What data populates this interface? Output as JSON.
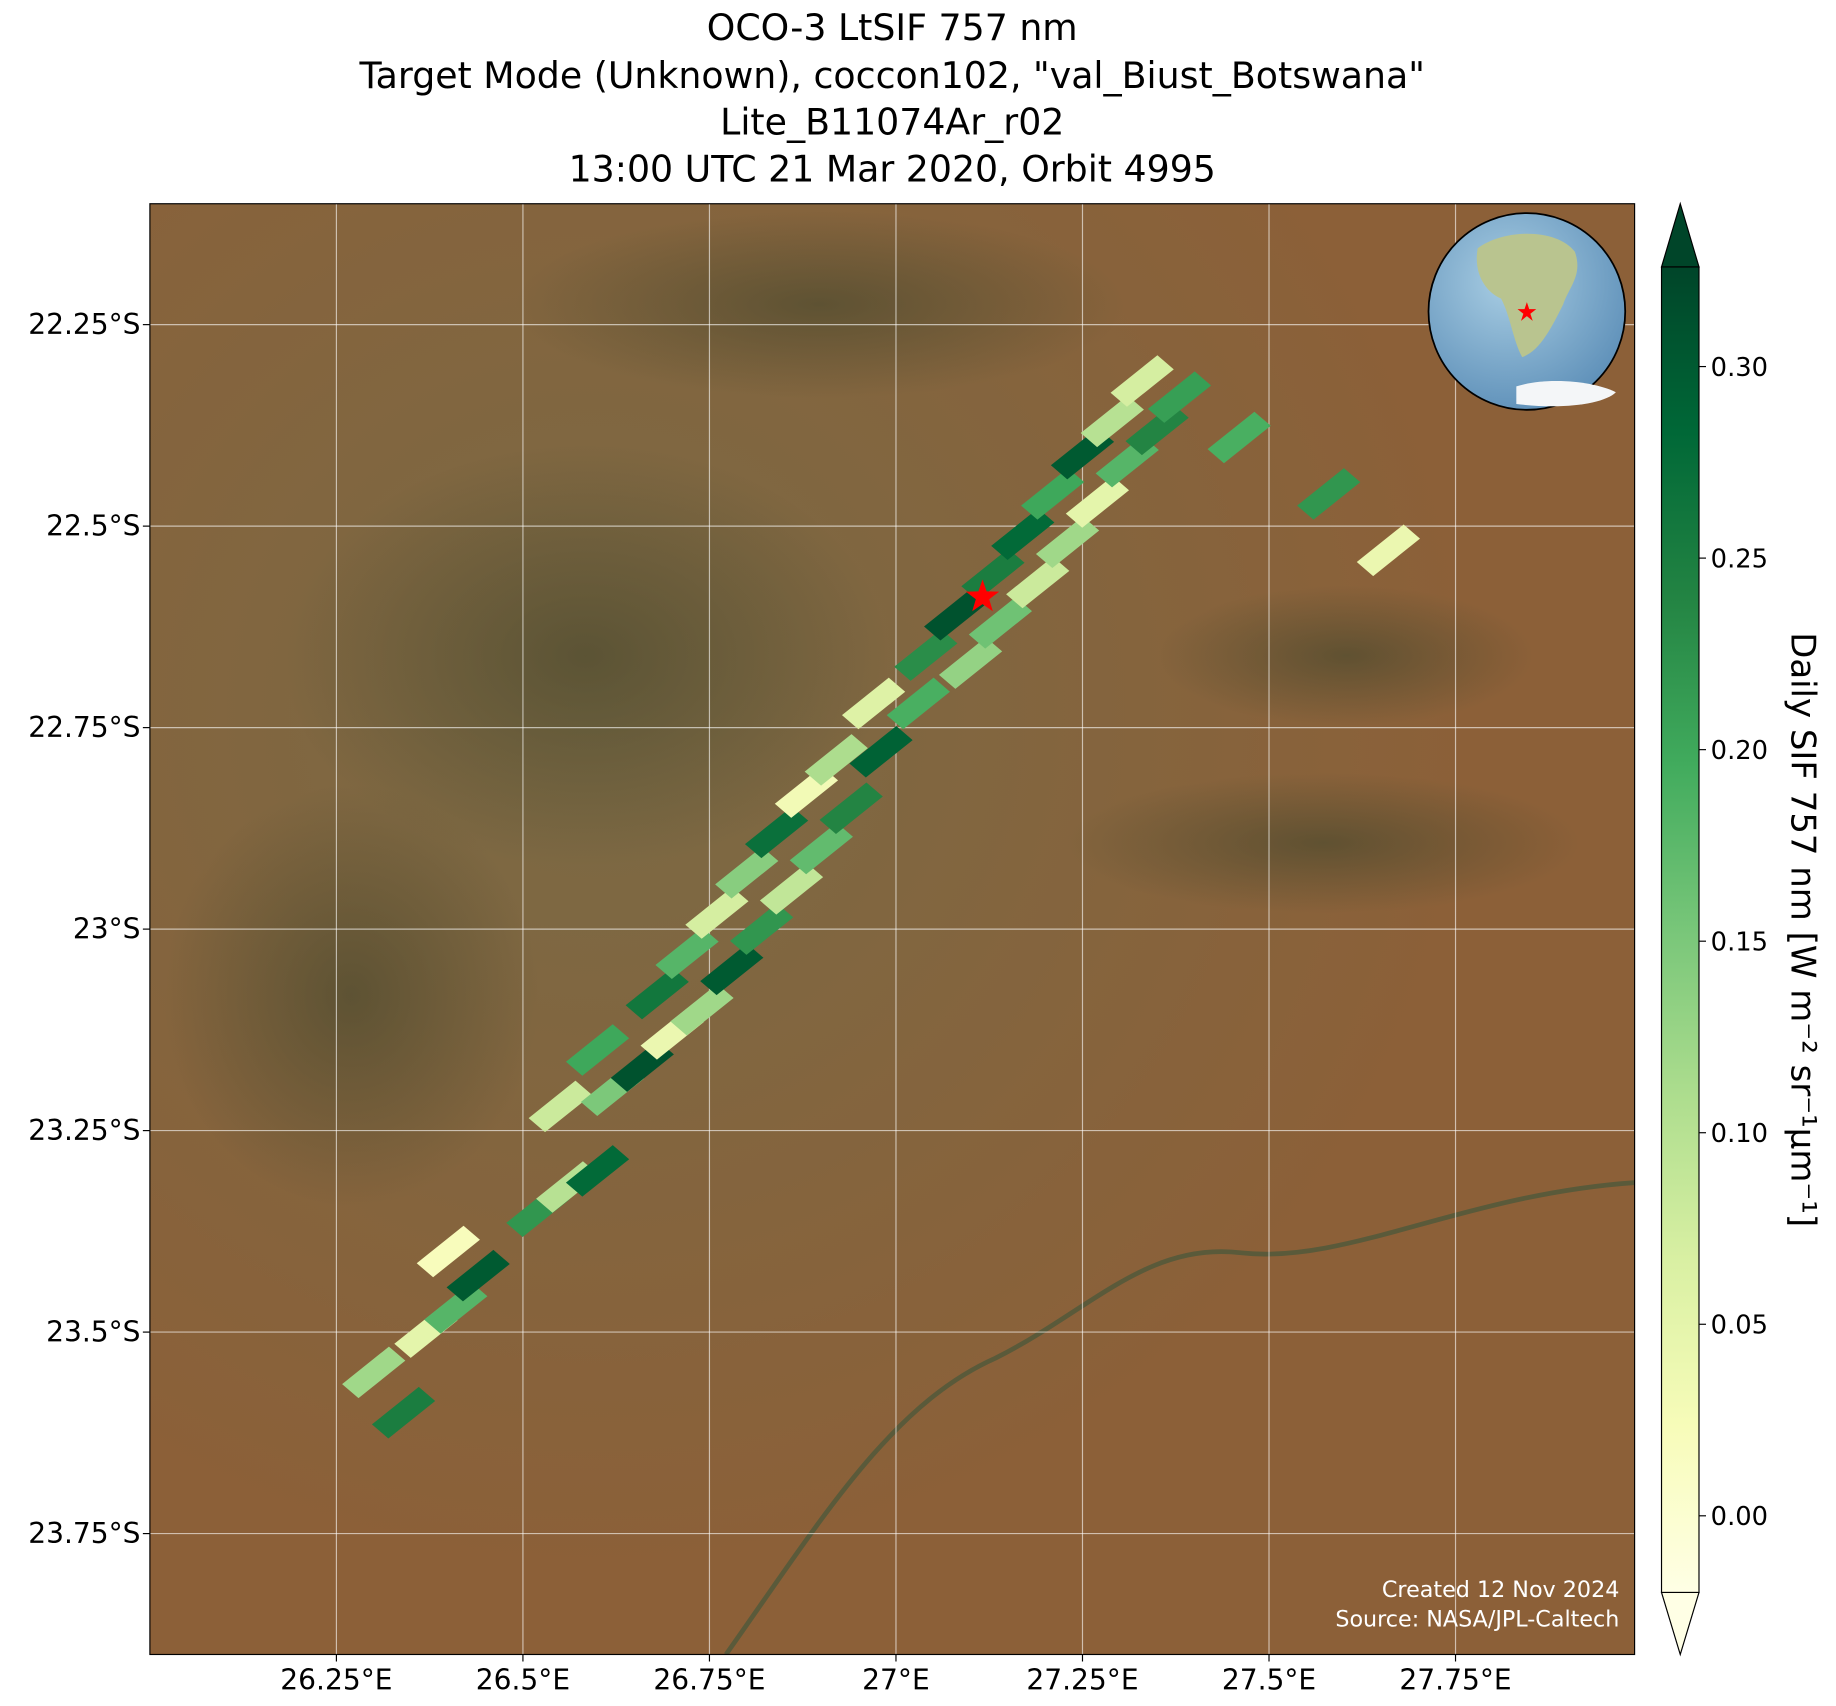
{
  "chart_data": {
    "type": "swath-map",
    "title": [
      "OCO-3 LtSIF 757 nm",
      "Target Mode (Unknown), coccon102, \"val_Biust_Botswana\"",
      "Lite_B11074Ar_r02",
      "13:00 UTC 21 Mar 2020, Orbit 4995"
    ],
    "xlim": [
      26.0,
      27.99
    ],
    "ylim": [
      -23.9,
      -22.1
    ],
    "xticks": [
      {
        "value": 26.25,
        "label": "26.25°E"
      },
      {
        "value": 26.5,
        "label": "26.5°E"
      },
      {
        "value": 26.75,
        "label": "26.75°E"
      },
      {
        "value": 27.0,
        "label": "27°E"
      },
      {
        "value": 27.25,
        "label": "27.25°E"
      },
      {
        "value": 27.5,
        "label": "27.5°E"
      },
      {
        "value": 27.75,
        "label": "27.75°E"
      }
    ],
    "yticks": [
      {
        "value": -22.25,
        "label": "22.25°S"
      },
      {
        "value": -22.5,
        "label": "22.5°S"
      },
      {
        "value": -22.75,
        "label": "22.75°S"
      },
      {
        "value": -23.0,
        "label": "23°S"
      },
      {
        "value": -23.25,
        "label": "23.25°S"
      },
      {
        "value": -23.5,
        "label": "23.5°S"
      },
      {
        "value": -23.75,
        "label": "23.75°S"
      }
    ],
    "grid": true,
    "colorbar": {
      "label": "Daily SIF 757 nm [W m⁻² sr⁻¹μm⁻¹]",
      "clim": [
        -0.02,
        0.326
      ],
      "ticks": [
        {
          "value": 0.0,
          "label": "0.00"
        },
        {
          "value": 0.05,
          "label": "0.05"
        },
        {
          "value": 0.1,
          "label": "0.10"
        },
        {
          "value": 0.15,
          "label": "0.15"
        },
        {
          "value": 0.2,
          "label": "0.20"
        },
        {
          "value": 0.25,
          "label": "0.25"
        },
        {
          "value": 0.3,
          "label": "0.30"
        }
      ],
      "colormap": [
        "#ffffe5",
        "#f7fcb9",
        "#d9f0a3",
        "#addd8e",
        "#78c679",
        "#41ab5d",
        "#238443",
        "#006837",
        "#004529"
      ]
    },
    "site": {
      "lon": 27.116,
      "lat": -22.588,
      "color": "#ff0000"
    },
    "soundings": {
      "lon": [
        26.3,
        26.34,
        26.37,
        26.41,
        26.44,
        26.4,
        26.52,
        26.56,
        26.6,
        26.55,
        26.62,
        26.66,
        26.6,
        26.7,
        26.68,
        26.74,
        26.72,
        26.78,
        26.76,
        26.82,
        26.8,
        26.86,
        26.84,
        26.9,
        26.88,
        26.94,
        26.92,
        26.98,
        26.97,
        27.03,
        27.04,
        27.1,
        27.08,
        27.14,
        27.13,
        27.19,
        27.17,
        27.23,
        27.21,
        27.27,
        27.25,
        27.31,
        27.29,
        27.35,
        27.33,
        27.38,
        27.46,
        27.58,
        27.66
      ],
      "lat": [
        -23.55,
        -23.6,
        -23.5,
        -23.47,
        -23.43,
        -23.4,
        -23.35,
        -23.32,
        -23.3,
        -23.22,
        -23.2,
        -23.17,
        -23.15,
        -23.13,
        -23.08,
        -23.1,
        -23.03,
        -23.05,
        -22.98,
        -23.0,
        -22.93,
        -22.95,
        -22.88,
        -22.9,
        -22.83,
        -22.85,
        -22.79,
        -22.78,
        -22.72,
        -22.72,
        -22.66,
        -22.67,
        -22.61,
        -22.62,
        -22.56,
        -22.57,
        -22.51,
        -22.52,
        -22.46,
        -22.47,
        -22.41,
        -22.42,
        -22.37,
        -22.38,
        -22.32,
        -22.34,
        -22.39,
        -22.46,
        -22.53
      ],
      "sif": [
        0.12,
        0.25,
        0.05,
        0.18,
        0.3,
        0.02,
        0.22,
        0.1,
        0.28,
        0.08,
        0.15,
        0.31,
        0.2,
        0.04,
        0.26,
        0.12,
        0.18,
        0.3,
        0.07,
        0.22,
        0.14,
        0.09,
        0.27,
        0.17,
        0.03,
        0.24,
        0.11,
        0.29,
        0.06,
        0.19,
        0.23,
        0.13,
        0.31,
        0.16,
        0.25,
        0.08,
        0.28,
        0.12,
        0.2,
        0.05,
        0.3,
        0.18,
        0.1,
        0.24,
        0.07,
        0.21,
        0.19,
        0.22,
        0.04
      ]
    },
    "credits": [
      "Created 12 Nov 2024",
      "Source: NASA/JPL-Caltech"
    ]
  }
}
